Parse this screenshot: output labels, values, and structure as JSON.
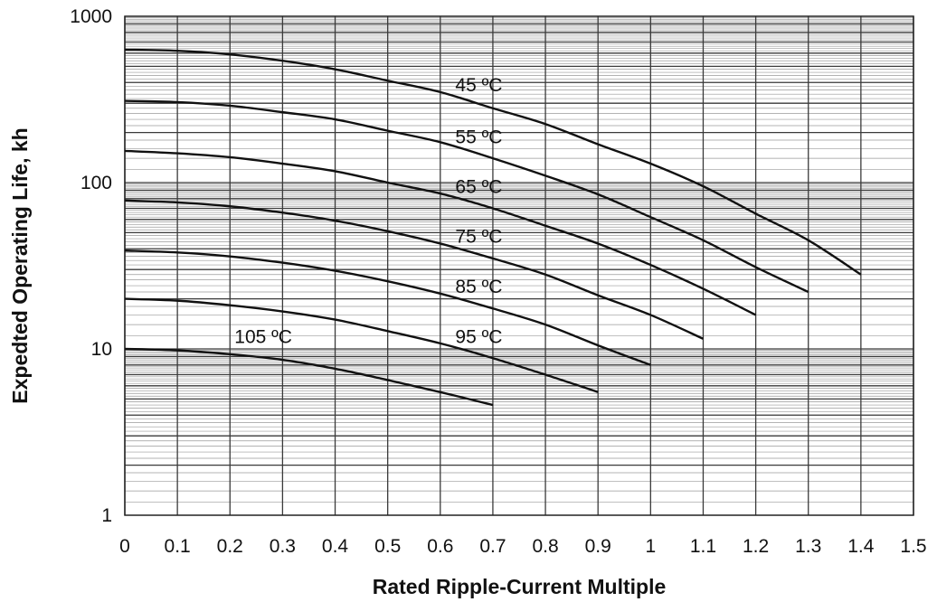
{
  "chart_data": {
    "type": "line",
    "xlabel": "Rated Ripple-Current Multiple",
    "ylabel": "Expedted Operating Life, kh",
    "xlim": [
      0,
      1.5
    ],
    "ylim": [
      1,
      1000
    ],
    "y_scale": "log",
    "grid": true,
    "x_ticks": [
      "0",
      "0.1",
      "0.2",
      "0.3",
      "0.4",
      "0.5",
      "0.6",
      "0.7",
      "0.8",
      "0.9",
      "1",
      "1.1",
      "1.2",
      "1.3",
      "1.4",
      "1.5"
    ],
    "y_ticks": [
      "1",
      "10",
      "100",
      "1000"
    ],
    "series": [
      {
        "name": "45 ºC",
        "x": [
          0,
          0.1,
          0.2,
          0.3,
          0.4,
          0.5,
          0.6,
          0.7,
          0.8,
          0.9,
          1.0,
          1.1,
          1.2,
          1.3,
          1.4
        ],
        "y": [
          630,
          620,
          590,
          540,
          480,
          410,
          350,
          280,
          225,
          170,
          130,
          95,
          65,
          45,
          28
        ]
      },
      {
        "name": "55 ºC",
        "x": [
          0,
          0.1,
          0.2,
          0.3,
          0.4,
          0.5,
          0.6,
          0.7,
          0.8,
          0.9,
          1.0,
          1.1,
          1.2,
          1.3
        ],
        "y": [
          310,
          305,
          290,
          265,
          240,
          205,
          175,
          140,
          110,
          85,
          62,
          45,
          31,
          22
        ]
      },
      {
        "name": "65 ºC",
        "x": [
          0,
          0.1,
          0.2,
          0.3,
          0.4,
          0.5,
          0.6,
          0.7,
          0.8,
          0.9,
          1.0,
          1.1,
          1.2
        ],
        "y": [
          155,
          150,
          142,
          130,
          117,
          100,
          86,
          70,
          55,
          43,
          32,
          23,
          16
        ]
      },
      {
        "name": "75 ºC",
        "x": [
          0,
          0.1,
          0.2,
          0.3,
          0.4,
          0.5,
          0.6,
          0.7,
          0.8,
          0.9,
          1.0,
          1.1
        ],
        "y": [
          78,
          76,
          72,
          66,
          59,
          51,
          43,
          35,
          28,
          21,
          16,
          11.5
        ]
      },
      {
        "name": "85 ºC",
        "x": [
          0,
          0.1,
          0.2,
          0.3,
          0.4,
          0.5,
          0.6,
          0.7,
          0.8,
          0.9,
          1.0
        ],
        "y": [
          39,
          38,
          36,
          33,
          29.5,
          25.5,
          21.5,
          17.5,
          14,
          10.5,
          8
        ]
      },
      {
        "name": "95 ºC",
        "x": [
          0,
          0.1,
          0.2,
          0.3,
          0.4,
          0.5,
          0.6,
          0.7,
          0.8,
          0.9
        ],
        "y": [
          20,
          19.5,
          18.3,
          16.8,
          15,
          12.8,
          10.8,
          8.8,
          7,
          5.5
        ]
      },
      {
        "name": "105 ºC",
        "x": [
          0,
          0.1,
          0.2,
          0.3,
          0.4,
          0.5,
          0.6,
          0.7
        ],
        "y": [
          10,
          9.8,
          9.3,
          8.6,
          7.6,
          6.5,
          5.5,
          4.6
        ]
      }
    ],
    "annotations": [
      {
        "text": "45 ºC",
        "x": 0.62,
        "y": 390
      },
      {
        "text": "55 ºC",
        "x": 0.62,
        "y": 190
      },
      {
        "text": "65 ºC",
        "x": 0.62,
        "y": 96
      },
      {
        "text": "75 ºC",
        "x": 0.62,
        "y": 48
      },
      {
        "text": "85 ºC",
        "x": 0.62,
        "y": 24
      },
      {
        "text": "95 ºC",
        "x": 0.62,
        "y": 12
      },
      {
        "text": "105 ºC",
        "x": 0.2,
        "y": 12
      }
    ]
  }
}
